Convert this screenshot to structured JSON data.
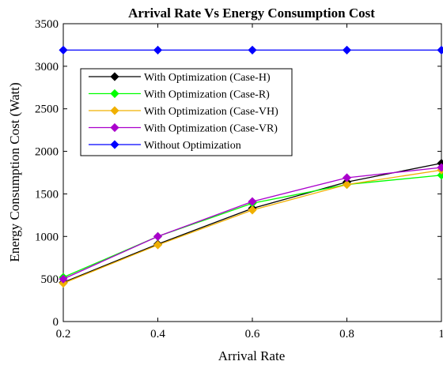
{
  "chart_data": {
    "type": "line",
    "title": "Arrival Rate Vs Energy Consumption Cost",
    "xlabel": "Arrival Rate",
    "ylabel": "Energy Consumption Cost (Watt)",
    "xlim": [
      0.2,
      1
    ],
    "ylim": [
      0,
      3500
    ],
    "xticks": [
      "0.2",
      "0.4",
      "0.6",
      "0.8",
      "1"
    ],
    "yticks": [
      "0",
      "500",
      "1000",
      "1500",
      "2000",
      "2500",
      "3000",
      "3500"
    ],
    "grid": false,
    "legend_position": "top-left",
    "x": [
      0.2,
      0.4,
      0.6,
      0.8,
      1.0
    ],
    "series": [
      {
        "name": "With Optimization (Case-H)",
        "color": "#000000",
        "values": [
          460,
          910,
          1330,
          1640,
          1860
        ]
      },
      {
        "name": "With Optimization (Case-R)",
        "color": "#00ff00",
        "values": [
          520,
          1000,
          1390,
          1610,
          1720
        ]
      },
      {
        "name": "With Optimization (Case-VH)",
        "color": "#f0b000",
        "values": [
          450,
          900,
          1310,
          1610,
          1780
        ]
      },
      {
        "name": "With Optimization (Case-VR)",
        "color": "#aa00cc",
        "values": [
          500,
          1000,
          1410,
          1690,
          1810
        ]
      },
      {
        "name": "Without Optimization",
        "color": "#0000ff",
        "values": [
          3190,
          3190,
          3190,
          3190,
          3190
        ]
      }
    ]
  }
}
